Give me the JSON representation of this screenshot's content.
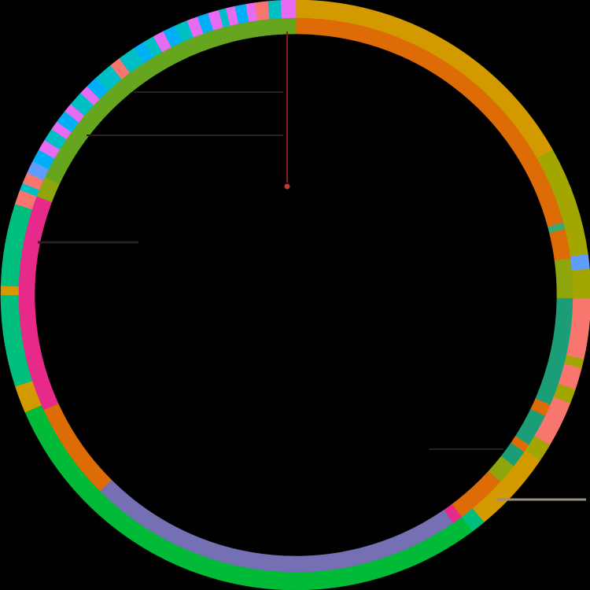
{
  "diagram": {
    "type": "circular-genome-plot",
    "background": "#000000",
    "inner_ring": [
      {
        "name": "inner-seg-01",
        "start": 0.0,
        "end": 0.208,
        "color": "#DD6B06"
      },
      {
        "name": "inner-seg-02",
        "start": 0.208,
        "end": 0.212,
        "color": "#3AA875"
      },
      {
        "name": "inner-seg-03",
        "start": 0.212,
        "end": 0.229,
        "color": "#DD6B06"
      },
      {
        "name": "inner-seg-04",
        "start": 0.229,
        "end": 0.252,
        "color": "#8EA50B"
      },
      {
        "name": "inner-seg-05",
        "start": 0.252,
        "end": 0.315,
        "color": "#1B9E77"
      },
      {
        "name": "inner-seg-06",
        "start": 0.315,
        "end": 0.322,
        "color": "#DD6B06"
      },
      {
        "name": "inner-seg-07",
        "start": 0.322,
        "end": 0.341,
        "color": "#1B9E77"
      },
      {
        "name": "inner-seg-08",
        "start": 0.341,
        "end": 0.346,
        "color": "#DD6B06"
      },
      {
        "name": "inner-seg-09",
        "start": 0.346,
        "end": 0.356,
        "color": "#1B9E77"
      },
      {
        "name": "inner-seg-10",
        "start": 0.356,
        "end": 0.368,
        "color": "#8EA50B"
      },
      {
        "name": "inner-seg-11",
        "start": 0.368,
        "end": 0.398,
        "color": "#DD6B06"
      },
      {
        "name": "inner-seg-12",
        "start": 0.398,
        "end": 0.404,
        "color": "#E7298A"
      },
      {
        "name": "inner-seg-13",
        "start": 0.404,
        "end": 0.625,
        "color": "#7570B3"
      },
      {
        "name": "inner-seg-14",
        "start": 0.625,
        "end": 0.682,
        "color": "#DD6B06"
      },
      {
        "name": "inner-seg-15",
        "start": 0.682,
        "end": 0.8,
        "color": "#E7298A"
      },
      {
        "name": "inner-seg-16",
        "start": 0.8,
        "end": 0.808,
        "color": "#E7298A"
      },
      {
        "name": "inner-seg-17",
        "start": 0.808,
        "end": 0.82,
        "color": "#8EA50B"
      },
      {
        "name": "inner-seg-18",
        "start": 0.82,
        "end": 1.0,
        "color": "#66A61E"
      }
    ],
    "outer_ring": [
      {
        "name": "outer-seg-01",
        "start": 0.0,
        "end": 0.168,
        "color": "#D39A00"
      },
      {
        "name": "outer-seg-02",
        "start": 0.168,
        "end": 0.228,
        "color": "#A3A500"
      },
      {
        "name": "outer-seg-03",
        "start": 0.228,
        "end": 0.236,
        "color": "#619CFF"
      },
      {
        "name": "outer-seg-04",
        "start": 0.236,
        "end": 0.252,
        "color": "#A3A500"
      },
      {
        "name": "outer-seg-05",
        "start": 0.252,
        "end": 0.285,
        "color": "#F8766D"
      },
      {
        "name": "outer-seg-06",
        "start": 0.285,
        "end": 0.29,
        "color": "#A3A500"
      },
      {
        "name": "outer-seg-07",
        "start": 0.29,
        "end": 0.302,
        "color": "#F8766D"
      },
      {
        "name": "outer-seg-08",
        "start": 0.302,
        "end": 0.31,
        "color": "#A3A500"
      },
      {
        "name": "outer-seg-09",
        "start": 0.31,
        "end": 0.335,
        "color": "#F8766D"
      },
      {
        "name": "outer-seg-10",
        "start": 0.335,
        "end": 0.345,
        "color": "#A3A500"
      },
      {
        "name": "outer-seg-11",
        "start": 0.345,
        "end": 0.39,
        "color": "#D39A00"
      },
      {
        "name": "outer-seg-12",
        "start": 0.39,
        "end": 0.398,
        "color": "#00BF7D"
      },
      {
        "name": "outer-seg-13",
        "start": 0.398,
        "end": 0.685,
        "color": "#00BA38"
      },
      {
        "name": "outer-seg-14",
        "start": 0.685,
        "end": 0.7,
        "color": "#D39A00"
      },
      {
        "name": "outer-seg-15",
        "start": 0.7,
        "end": 0.75,
        "color": "#00BF7D"
      },
      {
        "name": "outer-seg-16",
        "start": 0.75,
        "end": 0.755,
        "color": "#D39A00"
      },
      {
        "name": "outer-seg-17",
        "start": 0.755,
        "end": 0.8,
        "color": "#00BF7D"
      },
      {
        "name": "outer-seg-18",
        "start": 0.8,
        "end": 0.808,
        "color": "#F8766D"
      },
      {
        "name": "outer-seg-19",
        "start": 0.808,
        "end": 0.812,
        "color": "#00BFC4"
      },
      {
        "name": "outer-seg-20",
        "start": 0.812,
        "end": 0.818,
        "color": "#F8766D"
      },
      {
        "name": "outer-seg-21",
        "start": 0.818,
        "end": 0.825,
        "color": "#619CFF"
      },
      {
        "name": "outer-seg-22",
        "start": 0.825,
        "end": 0.832,
        "color": "#00B0F6"
      },
      {
        "name": "outer-seg-23",
        "start": 0.832,
        "end": 0.838,
        "color": "#E76BF3"
      },
      {
        "name": "outer-seg-24",
        "start": 0.838,
        "end": 0.845,
        "color": "#00BFC4"
      },
      {
        "name": "outer-seg-25",
        "start": 0.845,
        "end": 0.85,
        "color": "#E76BF3"
      },
      {
        "name": "outer-seg-26",
        "start": 0.85,
        "end": 0.857,
        "color": "#00B0F6"
      },
      {
        "name": "outer-seg-27",
        "start": 0.857,
        "end": 0.862,
        "color": "#E76BF3"
      },
      {
        "name": "outer-seg-28",
        "start": 0.862,
        "end": 0.87,
        "color": "#00BFC4"
      },
      {
        "name": "outer-seg-29",
        "start": 0.87,
        "end": 0.875,
        "color": "#E76BF3"
      },
      {
        "name": "outer-seg-30",
        "start": 0.875,
        "end": 0.882,
        "color": "#00B0F6"
      },
      {
        "name": "outer-seg-31",
        "start": 0.882,
        "end": 0.892,
        "color": "#00BFC4"
      },
      {
        "name": "outer-seg-32",
        "start": 0.892,
        "end": 0.898,
        "color": "#F8766D"
      },
      {
        "name": "outer-seg-33",
        "start": 0.898,
        "end": 0.908,
        "color": "#00BFC4"
      },
      {
        "name": "outer-seg-34",
        "start": 0.908,
        "end": 0.914,
        "color": "#00B0F6"
      },
      {
        "name": "outer-seg-35",
        "start": 0.914,
        "end": 0.92,
        "color": "#00BFC4"
      },
      {
        "name": "outer-seg-36",
        "start": 0.92,
        "end": 0.926,
        "color": "#E76BF3"
      },
      {
        "name": "outer-seg-37",
        "start": 0.926,
        "end": 0.933,
        "color": "#00B0F6"
      },
      {
        "name": "outer-seg-38",
        "start": 0.933,
        "end": 0.94,
        "color": "#00BFC4"
      },
      {
        "name": "outer-seg-39",
        "start": 0.94,
        "end": 0.946,
        "color": "#E76BF3"
      },
      {
        "name": "outer-seg-40",
        "start": 0.946,
        "end": 0.952,
        "color": "#00B0F6"
      },
      {
        "name": "outer-seg-41",
        "start": 0.952,
        "end": 0.958,
        "color": "#E76BF3"
      },
      {
        "name": "outer-seg-42",
        "start": 0.958,
        "end": 0.962,
        "color": "#00BFC4"
      },
      {
        "name": "outer-seg-43",
        "start": 0.962,
        "end": 0.967,
        "color": "#E76BF3"
      },
      {
        "name": "outer-seg-44",
        "start": 0.967,
        "end": 0.973,
        "color": "#00B0F6"
      },
      {
        "name": "outer-seg-45",
        "start": 0.973,
        "end": 0.978,
        "color": "#E76BF3"
      },
      {
        "name": "outer-seg-46",
        "start": 0.978,
        "end": 0.985,
        "color": "#F8766D"
      },
      {
        "name": "outer-seg-47",
        "start": 0.985,
        "end": 0.992,
        "color": "#00BFC4"
      },
      {
        "name": "outer-seg-48",
        "start": 0.992,
        "end": 1.0,
        "color": "#E76BF3"
      }
    ],
    "colors": {
      "marker_line": "#8B1A1A",
      "marker_dot": "#C0392B",
      "connector_dark": "#2A1F1F",
      "connector_light": "#9A9080"
    }
  }
}
